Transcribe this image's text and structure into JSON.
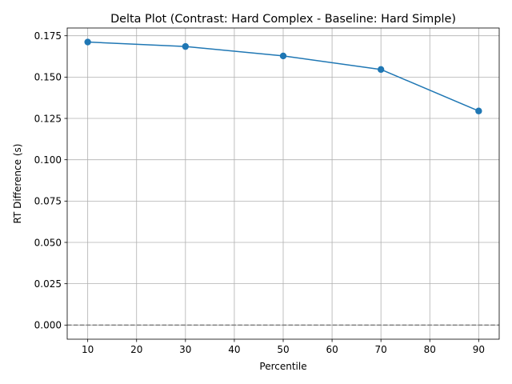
{
  "chart_data": {
    "type": "line",
    "title": "Delta Plot (Contrast: Hard Complex - Baseline: Hard Simple)",
    "xlabel": "Percentile",
    "ylabel": "RT Difference (s)",
    "xlim": [
      5.8,
      94.2
    ],
    "ylim": [
      -0.008557,
      0.179697
    ],
    "xticks": [
      10,
      20,
      30,
      40,
      50,
      60,
      70,
      80,
      90
    ],
    "yticks": [
      0.0,
      0.025,
      0.05,
      0.075,
      0.1,
      0.125,
      0.15,
      0.175
    ],
    "xtick_labels": [
      "10",
      "20",
      "30",
      "40",
      "50",
      "60",
      "70",
      "80",
      "90"
    ],
    "ytick_labels": [
      "0.000",
      "0.025",
      "0.050",
      "0.075",
      "0.100",
      "0.125",
      "0.150",
      "0.175"
    ],
    "grid": true,
    "reference_line": {
      "y": 0,
      "style": "dashed",
      "color": "#808080"
    },
    "series": [
      {
        "x": [
          10,
          30,
          50,
          70,
          90
        ],
        "y": [
          0.1712,
          0.1685,
          0.1628,
          0.1546,
          0.1295
        ],
        "color": "#1f77b4",
        "marker": "circle"
      }
    ]
  }
}
